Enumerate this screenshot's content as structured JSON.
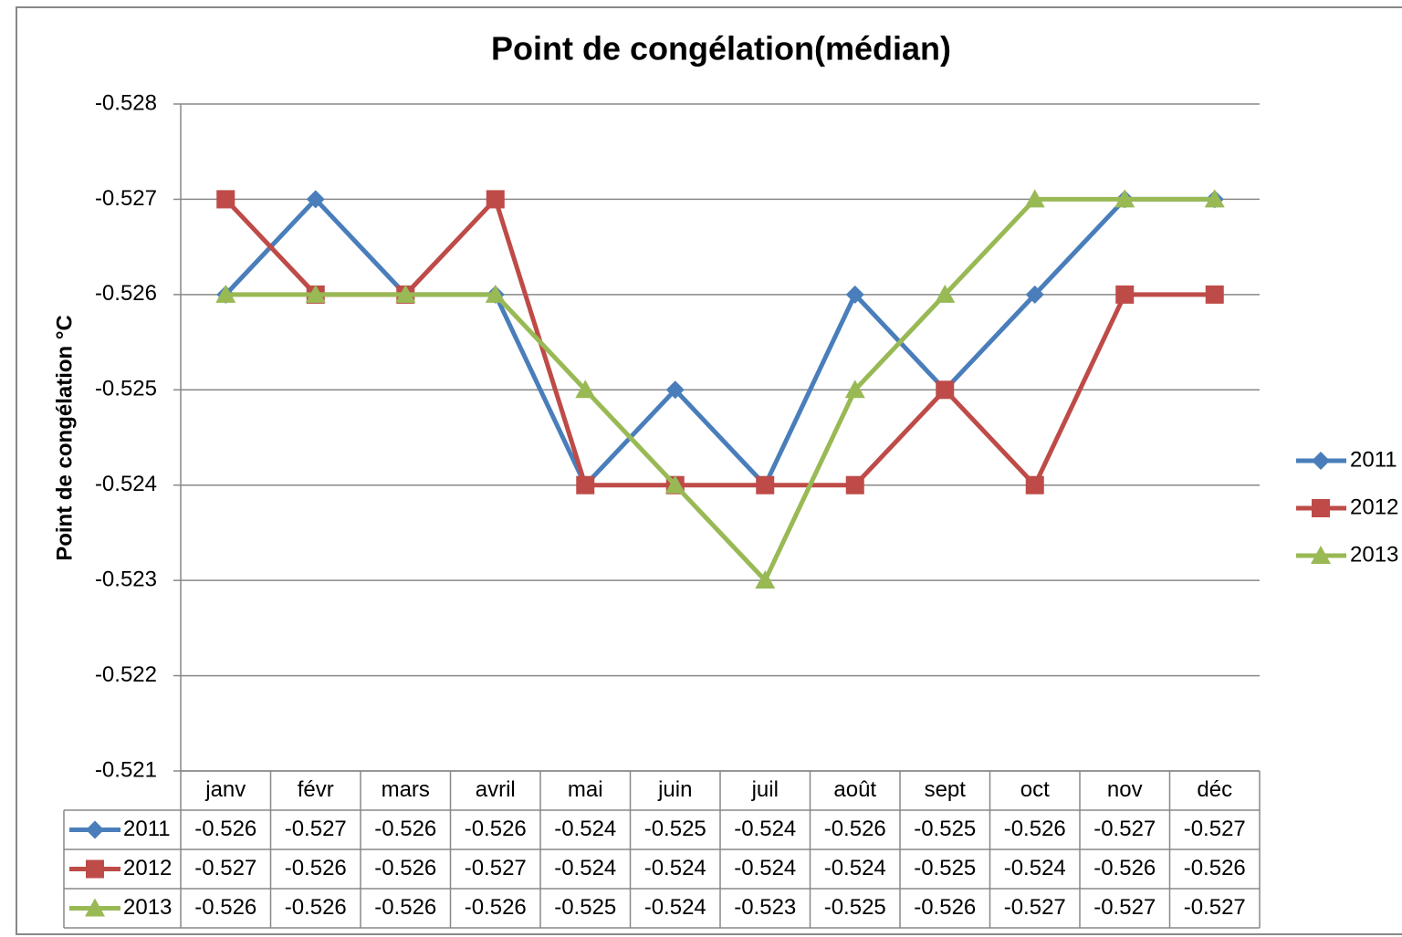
{
  "chart_data": {
    "type": "line",
    "title": "Point de congélation(médian)",
    "y_label": "Point de congélation °C",
    "categories": [
      "janv",
      "févr",
      "mars",
      "avril",
      "mai",
      "juin",
      "juil",
      "août",
      "sept",
      "oct",
      "nov",
      "déc"
    ],
    "series": [
      {
        "name": "2011",
        "color": "#4a7ebb",
        "marker": "diamond",
        "values": [
          -0.526,
          -0.527,
          -0.526,
          -0.526,
          -0.524,
          -0.525,
          -0.524,
          -0.526,
          -0.525,
          -0.526,
          -0.527,
          -0.527
        ]
      },
      {
        "name": "2012",
        "color": "#be4b48",
        "marker": "square",
        "values": [
          -0.527,
          -0.526,
          -0.526,
          -0.527,
          -0.524,
          -0.524,
          -0.524,
          -0.524,
          -0.525,
          -0.524,
          -0.526,
          -0.526
        ]
      },
      {
        "name": "2013",
        "color": "#98b954",
        "marker": "triangle",
        "values": [
          -0.526,
          -0.526,
          -0.526,
          -0.526,
          -0.525,
          -0.524,
          -0.523,
          -0.525,
          -0.526,
          -0.527,
          -0.527,
          -0.527
        ]
      }
    ],
    "ylim": [
      -0.528,
      -0.521
    ],
    "y_reversed": true,
    "yticks": [
      -0.528,
      -0.527,
      -0.526,
      -0.525,
      -0.524,
      -0.523,
      -0.522,
      -0.521
    ],
    "grid": true,
    "legend": "right",
    "data_table": true
  }
}
